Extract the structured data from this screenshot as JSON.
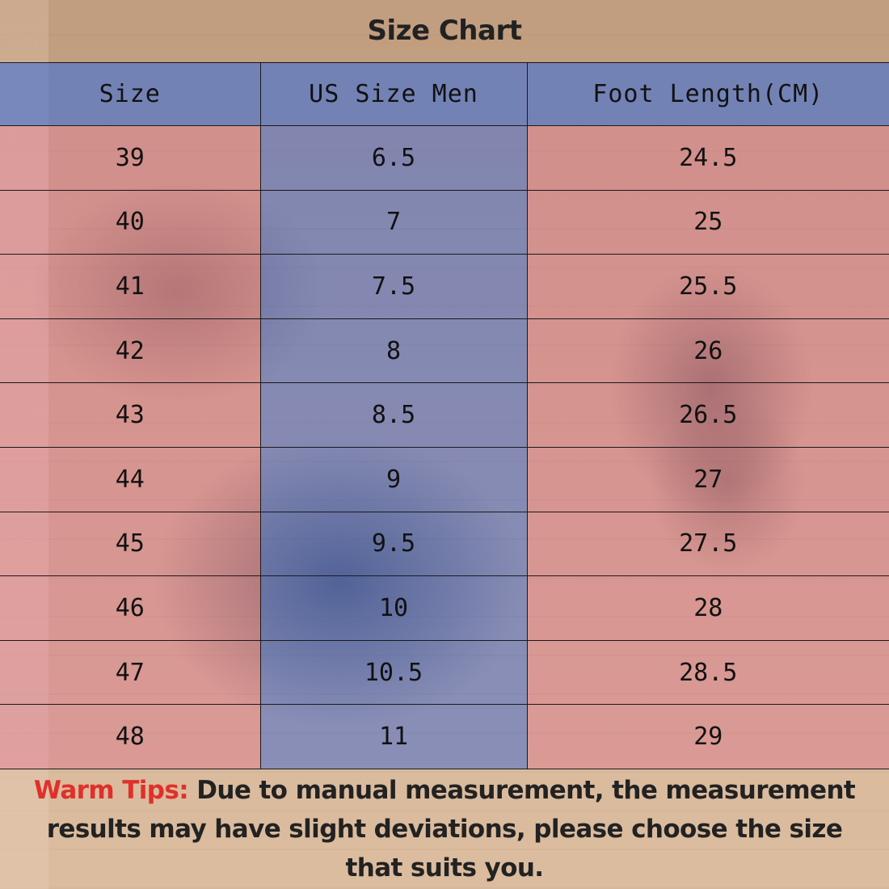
{
  "title": "Size Chart",
  "colors": {
    "header_row": "#5f7dc8",
    "body_pink": "#e18ca0",
    "body_blue_column": "#5a7dd7",
    "tips_label": "#e0302a"
  },
  "table": {
    "headers": [
      "Size",
      "US Size Men",
      "Foot Length(CM)"
    ],
    "rows": [
      [
        "39",
        "6.5",
        "24.5"
      ],
      [
        "40",
        "7",
        "25"
      ],
      [
        "41",
        "7.5",
        "25.5"
      ],
      [
        "42",
        "8",
        "26"
      ],
      [
        "43",
        "8.5",
        "26.5"
      ],
      [
        "44",
        "9",
        "27"
      ],
      [
        "45",
        "9.5",
        "27.5"
      ],
      [
        "46",
        "10",
        "28"
      ],
      [
        "47",
        "10.5",
        "28.5"
      ],
      [
        "48",
        "11",
        "29"
      ]
    ]
  },
  "tips": {
    "label": "Warm Tips:",
    "text": " Due to manual measurement, the measurement results may have slight deviations, please choose the size that suits you."
  }
}
